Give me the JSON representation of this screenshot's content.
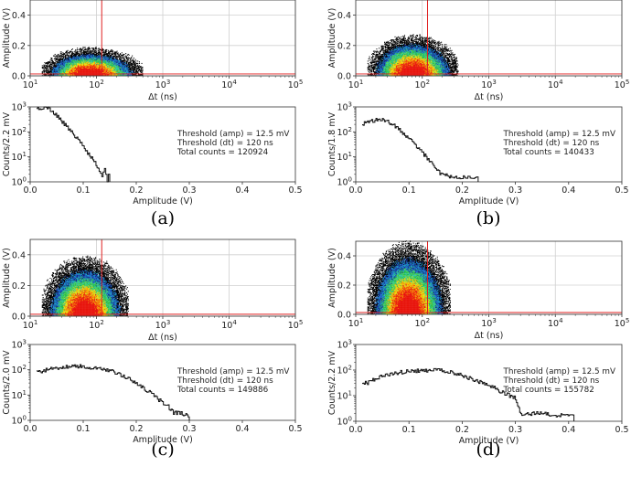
{
  "chart_data": [
    {
      "panel": "(a)",
      "scatter": {
        "type": "heatmap",
        "xlabel": "Δt (ns)",
        "ylabel": "Amplitude (V)",
        "xscale": "log",
        "xlim": [
          10,
          100000
        ],
        "ylim": [
          0,
          0.5
        ],
        "xticks": [
          {
            "base": "10",
            "exp": "1"
          },
          {
            "base": "10",
            "exp": "2"
          },
          {
            "base": "10",
            "exp": "3"
          },
          {
            "base": "10",
            "exp": "4"
          },
          {
            "base": "10",
            "exp": "5"
          }
        ],
        "yticks": [
          "0.0",
          "0.2",
          "0.4"
        ],
        "threshold_dt_ns": 120,
        "threshold_amp_V": 0.0125,
        "cloud_dt_range_ns": [
          15,
          500
        ],
        "cloud_center_dt_ns": 75,
        "cloud_max_amp_V": 0.17
      },
      "hist": {
        "type": "line",
        "step": true,
        "xlabel": "Amplitude (V)",
        "ylabel": "Counts/2.2 mV",
        "yscale": "log",
        "xlim": [
          0,
          0.5
        ],
        "ylim": [
          1,
          1000
        ],
        "xticks": [
          "0.0",
          "0.1",
          "0.2",
          "0.3",
          "0.4",
          "0.5"
        ],
        "yticks": [
          {
            "base": "10",
            "exp": "0"
          },
          {
            "base": "10",
            "exp": "1"
          },
          {
            "base": "10",
            "exp": "2"
          },
          {
            "base": "10",
            "exp": "3"
          }
        ],
        "x": [
          0.012,
          0.02,
          0.03,
          0.04,
          0.05,
          0.06,
          0.07,
          0.08,
          0.09,
          0.1,
          0.11,
          0.12,
          0.13,
          0.135,
          0.14,
          0.145,
          0.15
        ],
        "y": [
          900,
          900,
          1000,
          700,
          450,
          260,
          150,
          85,
          50,
          26,
          13,
          7,
          3,
          1.5,
          4,
          1,
          4
        ],
        "annotation": [
          "Threshold (amp) = 12.5 mV",
          "Threshold (dt) = 120 ns",
          "Total counts = 120924"
        ]
      }
    },
    {
      "panel": "(b)",
      "scatter": {
        "type": "heatmap",
        "xlabel": "Δt (ns)",
        "ylabel": "Amplitude (V)",
        "xscale": "log",
        "xlim": [
          10,
          100000
        ],
        "ylim": [
          0,
          0.5
        ],
        "xticks": [
          {
            "base": "10",
            "exp": "1"
          },
          {
            "base": "10",
            "exp": "2"
          },
          {
            "base": "10",
            "exp": "3"
          },
          {
            "base": "10",
            "exp": "4"
          },
          {
            "base": "10",
            "exp": "5"
          }
        ],
        "yticks": [
          "0.0",
          "0.2",
          "0.4"
        ],
        "threshold_dt_ns": 120,
        "threshold_amp_V": 0.0125,
        "cloud_dt_range_ns": [
          15,
          350
        ],
        "cloud_center_dt_ns": 70,
        "cloud_max_amp_V": 0.25
      },
      "hist": {
        "type": "line",
        "step": true,
        "xlabel": "Amplitude (V)",
        "ylabel": "Counts/1.8 mV",
        "yscale": "log",
        "xlim": [
          0,
          0.5
        ],
        "ylim": [
          1,
          1000
        ],
        "xticks": [
          "0.0",
          "0.1",
          "0.2",
          "0.3",
          "0.4",
          "0.5"
        ],
        "yticks": [
          {
            "base": "10",
            "exp": "0"
          },
          {
            "base": "10",
            "exp": "1"
          },
          {
            "base": "10",
            "exp": "2"
          },
          {
            "base": "10",
            "exp": "3"
          }
        ],
        "x": [
          0.012,
          0.02,
          0.03,
          0.04,
          0.05,
          0.06,
          0.07,
          0.08,
          0.09,
          0.1,
          0.11,
          0.12,
          0.13,
          0.14,
          0.15,
          0.16,
          0.17,
          0.18,
          0.19,
          0.2,
          0.23
        ],
        "y": [
          200,
          240,
          280,
          300,
          290,
          250,
          190,
          130,
          85,
          52,
          32,
          20,
          11,
          6,
          3.5,
          2,
          2,
          1.5,
          1.5,
          1.5,
          1.5
        ],
        "annotation": [
          "Threshold (amp) = 12.5 mV",
          "Threshold (dt) = 120 ns",
          "Total counts = 140433"
        ]
      }
    },
    {
      "panel": "(c)",
      "scatter": {
        "type": "heatmap",
        "xlabel": "Δt (ns)",
        "ylabel": "Amplitude (V)",
        "xscale": "log",
        "xlim": [
          10,
          100000
        ],
        "ylim": [
          0,
          0.5
        ],
        "xticks": [
          {
            "base": "10",
            "exp": "1"
          },
          {
            "base": "10",
            "exp": "2"
          },
          {
            "base": "10",
            "exp": "3"
          },
          {
            "base": "10",
            "exp": "4"
          },
          {
            "base": "10",
            "exp": "5"
          }
        ],
        "yticks": [
          "0.0",
          "0.2",
          "0.4"
        ],
        "threshold_dt_ns": 120,
        "threshold_amp_V": 0.0125,
        "cloud_dt_range_ns": [
          15,
          300
        ],
        "cloud_center_dt_ns": 65,
        "cloud_max_amp_V": 0.36
      },
      "hist": {
        "type": "line",
        "step": true,
        "xlabel": "Amplitude (V)",
        "ylabel": "Counts/2.0 mV",
        "yscale": "log",
        "xlim": [
          0,
          0.5
        ],
        "ylim": [
          1,
          1000
        ],
        "xticks": [
          "0.0",
          "0.1",
          "0.2",
          "0.3",
          "0.4",
          "0.5"
        ],
        "yticks": [
          {
            "base": "10",
            "exp": "0"
          },
          {
            "base": "10",
            "exp": "1"
          },
          {
            "base": "10",
            "exp": "2"
          },
          {
            "base": "10",
            "exp": "3"
          }
        ],
        "x": [
          0.012,
          0.03,
          0.05,
          0.07,
          0.09,
          0.1,
          0.12,
          0.14,
          0.16,
          0.18,
          0.2,
          0.22,
          0.24,
          0.26,
          0.27,
          0.28,
          0.3
        ],
        "y": [
          80,
          100,
          120,
          130,
          140,
          140,
          120,
          100,
          80,
          50,
          30,
          15,
          7,
          3.5,
          2,
          2,
          1.5
        ],
        "annotation": [
          "Threshold (amp) = 12.5 mV",
          "Threshold (dt) = 120 ns",
          "Total counts = 149886"
        ]
      }
    },
    {
      "panel": "(d)",
      "scatter": {
        "type": "heatmap",
        "xlabel": "Δt (ns)",
        "ylabel": "Amplitude (V)",
        "xscale": "log",
        "xlim": [
          10,
          100000
        ],
        "ylim": [
          0,
          0.5
        ],
        "xticks": [
          {
            "base": "10",
            "exp": "1"
          },
          {
            "base": "10",
            "exp": "2"
          },
          {
            "base": "10",
            "exp": "3"
          },
          {
            "base": "10",
            "exp": "4"
          },
          {
            "base": "10",
            "exp": "5"
          }
        ],
        "yticks": [
          "0.0",
          "0.2",
          "0.4"
        ],
        "threshold_dt_ns": 120,
        "threshold_amp_V": 0.0125,
        "cloud_dt_range_ns": [
          15,
          260
        ],
        "cloud_center_dt_ns": 60,
        "cloud_max_amp_V": 0.46
      },
      "hist": {
        "type": "line",
        "step": true,
        "xlabel": "Amplitude (V)",
        "ylabel": "Counts/2.2 mV",
        "yscale": "log",
        "xlim": [
          0,
          0.5
        ],
        "ylim": [
          1,
          1000
        ],
        "xticks": [
          "0.0",
          "0.1",
          "0.2",
          "0.3",
          "0.4",
          "0.5"
        ],
        "yticks": [
          {
            "base": "10",
            "exp": "0"
          },
          {
            "base": "10",
            "exp": "1"
          },
          {
            "base": "10",
            "exp": "2"
          },
          {
            "base": "10",
            "exp": "3"
          }
        ],
        "x": [
          0.012,
          0.02,
          0.03,
          0.04,
          0.06,
          0.08,
          0.1,
          0.12,
          0.14,
          0.16,
          0.18,
          0.2,
          0.22,
          0.24,
          0.26,
          0.28,
          0.3,
          0.31,
          0.32,
          0.34,
          0.36,
          0.37,
          0.41
        ],
        "y": [
          35,
          30,
          40,
          50,
          65,
          80,
          90,
          95,
          100,
          95,
          80,
          60,
          42,
          30,
          20,
          12,
          8,
          2,
          2,
          2,
          2,
          1.5,
          2
        ],
        "annotation": [
          "Threshold (amp) = 12.5 mV",
          "Threshold (dt) = 120 ns",
          "Total counts = 155782"
        ]
      }
    }
  ]
}
